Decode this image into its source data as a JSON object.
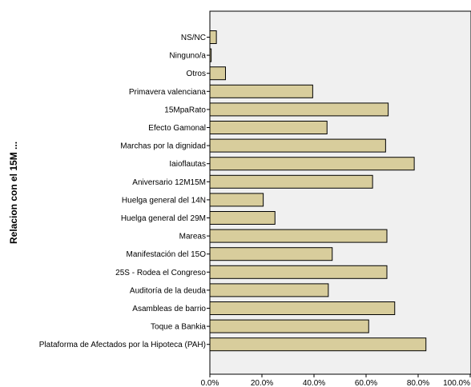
{
  "chart_data": {
    "type": "bar",
    "orientation": "horizontal",
    "ylabel": "Relacion con el 15M ...",
    "xlabel": "",
    "title": "",
    "xlim": [
      0,
      100
    ],
    "xticks": [
      "0.0%",
      "20.0%",
      "40.0%",
      "60.0%",
      "80.0%",
      "100.0%"
    ],
    "xtick_values": [
      0,
      20,
      40,
      60,
      80,
      100
    ],
    "categories": [
      "NS/NC",
      "Ninguno/a",
      "Otros",
      "Primavera valenciana",
      "15MpaRato",
      "Efecto Gamonal",
      "Marchas por la dignidad",
      "Iaioflautas",
      "Aniversario 12M15M",
      "Huelga general del 14N",
      "Huelga general del 29M",
      "Mareas",
      "Manifestación del 15O",
      "25S - Rodea el Congreso",
      "Auditoría de la deuda",
      "Asambleas de barrio",
      "Toque a Bankia",
      "Plataforma de Afectados por la Hipoteca (PAH)"
    ],
    "values": [
      2.5,
      0.5,
      6,
      39.5,
      68.5,
      45,
      67.5,
      78.5,
      62.5,
      20.5,
      25,
      68,
      47,
      68,
      45.5,
      71,
      61,
      83
    ],
    "bar_color": "#d8cd9c",
    "bar_stroke": "#000000",
    "plot_background": "#f0f0f0",
    "grid": false,
    "legend": "none"
  }
}
